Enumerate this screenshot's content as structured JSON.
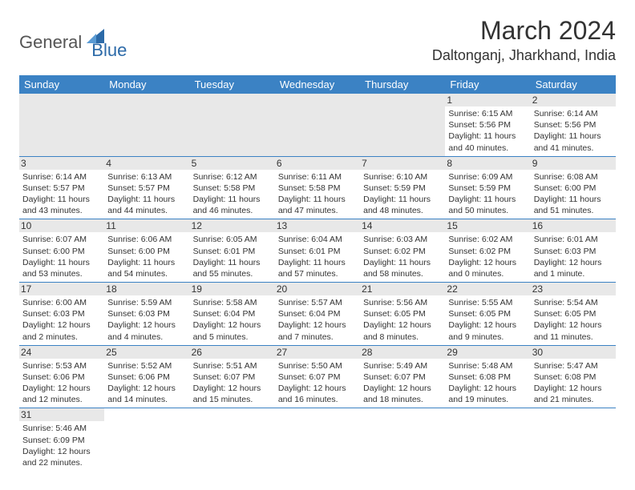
{
  "logo": {
    "general": "General",
    "blue": "Blue"
  },
  "title": "March 2024",
  "location": "Daltonganj, Jharkhand, India",
  "colors": {
    "header_bg": "#3b82c4",
    "header_text": "#ffffff",
    "daynum_bg": "#e8e8e8",
    "border": "#3b82c4",
    "logo_gray": "#555555",
    "logo_blue": "#2c6aa8"
  },
  "day_headers": [
    "Sunday",
    "Monday",
    "Tuesday",
    "Wednesday",
    "Thursday",
    "Friday",
    "Saturday"
  ],
  "weeks": [
    [
      null,
      null,
      null,
      null,
      null,
      {
        "n": "1",
        "sunrise": "6:15 AM",
        "sunset": "5:56 PM",
        "dl_h": 11,
        "dl_m": 40
      },
      {
        "n": "2",
        "sunrise": "6:14 AM",
        "sunset": "5:56 PM",
        "dl_h": 11,
        "dl_m": 41
      }
    ],
    [
      {
        "n": "3",
        "sunrise": "6:14 AM",
        "sunset": "5:57 PM",
        "dl_h": 11,
        "dl_m": 43
      },
      {
        "n": "4",
        "sunrise": "6:13 AM",
        "sunset": "5:57 PM",
        "dl_h": 11,
        "dl_m": 44
      },
      {
        "n": "5",
        "sunrise": "6:12 AM",
        "sunset": "5:58 PM",
        "dl_h": 11,
        "dl_m": 46
      },
      {
        "n": "6",
        "sunrise": "6:11 AM",
        "sunset": "5:58 PM",
        "dl_h": 11,
        "dl_m": 47
      },
      {
        "n": "7",
        "sunrise": "6:10 AM",
        "sunset": "5:59 PM",
        "dl_h": 11,
        "dl_m": 48
      },
      {
        "n": "8",
        "sunrise": "6:09 AM",
        "sunset": "5:59 PM",
        "dl_h": 11,
        "dl_m": 50
      },
      {
        "n": "9",
        "sunrise": "6:08 AM",
        "sunset": "6:00 PM",
        "dl_h": 11,
        "dl_m": 51
      }
    ],
    [
      {
        "n": "10",
        "sunrise": "6:07 AM",
        "sunset": "6:00 PM",
        "dl_h": 11,
        "dl_m": 53
      },
      {
        "n": "11",
        "sunrise": "6:06 AM",
        "sunset": "6:00 PM",
        "dl_h": 11,
        "dl_m": 54
      },
      {
        "n": "12",
        "sunrise": "6:05 AM",
        "sunset": "6:01 PM",
        "dl_h": 11,
        "dl_m": 55
      },
      {
        "n": "13",
        "sunrise": "6:04 AM",
        "sunset": "6:01 PM",
        "dl_h": 11,
        "dl_m": 57
      },
      {
        "n": "14",
        "sunrise": "6:03 AM",
        "sunset": "6:02 PM",
        "dl_h": 11,
        "dl_m": 58
      },
      {
        "n": "15",
        "sunrise": "6:02 AM",
        "sunset": "6:02 PM",
        "dl_h": 12,
        "dl_m": 0
      },
      {
        "n": "16",
        "sunrise": "6:01 AM",
        "sunset": "6:03 PM",
        "dl_h": 12,
        "dl_m": 1
      }
    ],
    [
      {
        "n": "17",
        "sunrise": "6:00 AM",
        "sunset": "6:03 PM",
        "dl_h": 12,
        "dl_m": 2
      },
      {
        "n": "18",
        "sunrise": "5:59 AM",
        "sunset": "6:03 PM",
        "dl_h": 12,
        "dl_m": 4
      },
      {
        "n": "19",
        "sunrise": "5:58 AM",
        "sunset": "6:04 PM",
        "dl_h": 12,
        "dl_m": 5
      },
      {
        "n": "20",
        "sunrise": "5:57 AM",
        "sunset": "6:04 PM",
        "dl_h": 12,
        "dl_m": 7
      },
      {
        "n": "21",
        "sunrise": "5:56 AM",
        "sunset": "6:05 PM",
        "dl_h": 12,
        "dl_m": 8
      },
      {
        "n": "22",
        "sunrise": "5:55 AM",
        "sunset": "6:05 PM",
        "dl_h": 12,
        "dl_m": 9
      },
      {
        "n": "23",
        "sunrise": "5:54 AM",
        "sunset": "6:05 PM",
        "dl_h": 12,
        "dl_m": 11
      }
    ],
    [
      {
        "n": "24",
        "sunrise": "5:53 AM",
        "sunset": "6:06 PM",
        "dl_h": 12,
        "dl_m": 12
      },
      {
        "n": "25",
        "sunrise": "5:52 AM",
        "sunset": "6:06 PM",
        "dl_h": 12,
        "dl_m": 14
      },
      {
        "n": "26",
        "sunrise": "5:51 AM",
        "sunset": "6:07 PM",
        "dl_h": 12,
        "dl_m": 15
      },
      {
        "n": "27",
        "sunrise": "5:50 AM",
        "sunset": "6:07 PM",
        "dl_h": 12,
        "dl_m": 16
      },
      {
        "n": "28",
        "sunrise": "5:49 AM",
        "sunset": "6:07 PM",
        "dl_h": 12,
        "dl_m": 18
      },
      {
        "n": "29",
        "sunrise": "5:48 AM",
        "sunset": "6:08 PM",
        "dl_h": 12,
        "dl_m": 19
      },
      {
        "n": "30",
        "sunrise": "5:47 AM",
        "sunset": "6:08 PM",
        "dl_h": 12,
        "dl_m": 21
      }
    ],
    [
      {
        "n": "31",
        "sunrise": "5:46 AM",
        "sunset": "6:09 PM",
        "dl_h": 12,
        "dl_m": 22
      },
      null,
      null,
      null,
      null,
      null,
      null
    ]
  ],
  "labels": {
    "sunrise": "Sunrise:",
    "sunset": "Sunset:",
    "daylight": "Daylight:",
    "hours": "hours",
    "and": "and",
    "minute": "minute.",
    "minutes": "minutes."
  }
}
